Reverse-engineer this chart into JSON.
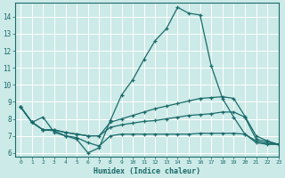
{
  "xlabel": "Humidex (Indice chaleur)",
  "xlim": [
    -0.5,
    23
  ],
  "ylim": [
    5.8,
    14.8
  ],
  "yticks": [
    6,
    7,
    8,
    9,
    10,
    11,
    12,
    13,
    14
  ],
  "xticks": [
    0,
    1,
    2,
    3,
    4,
    5,
    6,
    7,
    8,
    9,
    10,
    11,
    12,
    13,
    14,
    15,
    16,
    17,
    18,
    19,
    20,
    21,
    22,
    23
  ],
  "bg_color": "#cceae7",
  "grid_color": "#ffffff",
  "line_color": "#1a6b6b",
  "line1_y": [
    8.7,
    7.8,
    8.1,
    7.2,
    7.0,
    6.8,
    6.0,
    6.3,
    7.9,
    9.4,
    10.3,
    11.5,
    12.6,
    13.3,
    14.55,
    14.2,
    14.1,
    11.1,
    9.2,
    8.1,
    7.1,
    6.6,
    6.5,
    6.5
  ],
  "line2_y": [
    8.7,
    7.8,
    7.35,
    7.35,
    7.2,
    7.1,
    7.0,
    7.0,
    7.8,
    8.0,
    8.2,
    8.4,
    8.6,
    8.75,
    8.9,
    9.05,
    9.2,
    9.25,
    9.3,
    9.2,
    8.15,
    7.0,
    6.7,
    6.5
  ],
  "line3_y": [
    8.7,
    7.8,
    7.35,
    7.35,
    7.2,
    7.1,
    7.0,
    7.0,
    7.5,
    7.65,
    7.75,
    7.85,
    7.9,
    8.0,
    8.1,
    8.2,
    8.25,
    8.3,
    8.4,
    8.4,
    8.1,
    6.8,
    6.65,
    6.5
  ],
  "line4_y": [
    8.7,
    7.8,
    7.35,
    7.3,
    7.0,
    6.9,
    6.6,
    6.4,
    7.0,
    7.1,
    7.1,
    7.1,
    7.1,
    7.1,
    7.1,
    7.1,
    7.15,
    7.15,
    7.15,
    7.15,
    7.1,
    6.7,
    6.55,
    6.5
  ]
}
